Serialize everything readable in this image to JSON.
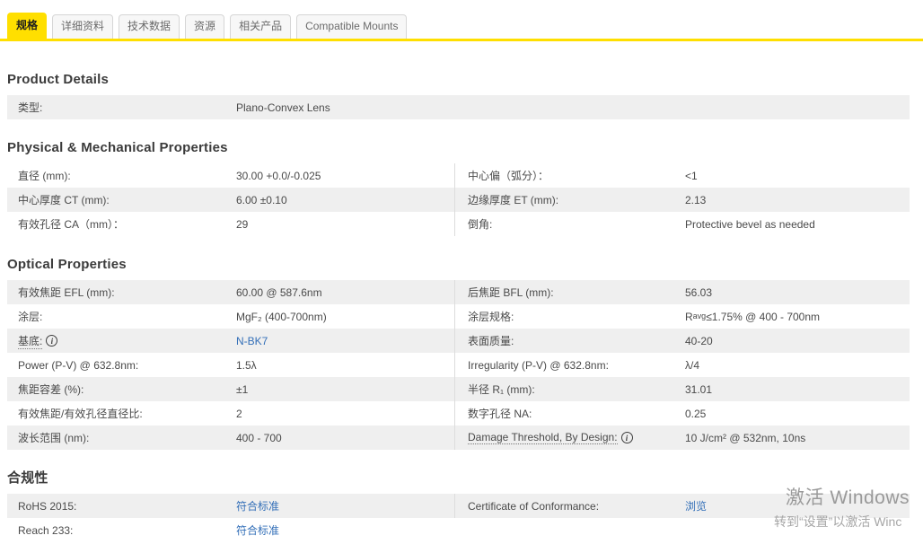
{
  "colors": {
    "accent_yellow": "#ffdf00",
    "link_blue": "#336fb8",
    "row_gray": "#efefef"
  },
  "icons": {
    "info_glyph": "i"
  },
  "tabs": [
    {
      "label": "规格",
      "active": true
    },
    {
      "label": "详细资料",
      "active": false
    },
    {
      "label": "技术数据",
      "active": false
    },
    {
      "label": "资源",
      "active": false
    },
    {
      "label": "相关产品",
      "active": false
    },
    {
      "label": "Compatible Mounts",
      "active": false
    }
  ],
  "product_details": {
    "heading": "Product Details",
    "rows": [
      {
        "l1": "类型:",
        "v1": "Plano-Convex Lens"
      }
    ]
  },
  "physical": {
    "heading": "Physical & Mechanical Properties",
    "rows": [
      {
        "l1": "直径 (mm):",
        "v1": "30.00 +0.0/-0.025",
        "l2": "中心偏（弧分）：",
        "v2": "<1"
      },
      {
        "l1": "中心厚度 CT (mm):",
        "v1": "6.00 ±0.10",
        "l2": "边缘厚度 ET (mm):",
        "v2": "2.13"
      },
      {
        "l1": "有效孔径 CA（mm）：",
        "v1": "29",
        "l2": "倒角:",
        "v2": "Protective bevel as needed"
      }
    ]
  },
  "optical": {
    "heading": "Optical Properties",
    "rows": [
      {
        "l1": "有效焦距 EFL (mm):",
        "v1": "60.00 @ 587.6nm",
        "l2": "后焦距 BFL (mm):",
        "v2": "56.03"
      },
      {
        "l1": "涂层:",
        "v1": "MgF₂ (400-700nm)",
        "l2": "涂层规格:",
        "v2_pre": "R",
        "v2_sub": "avg",
        "v2_post": " ≤1.75% @ 400 - 700nm"
      },
      {
        "l1": "基底:",
        "v1": "N-BK7",
        "l2": "表面质量:",
        "v2": "40-20"
      },
      {
        "l1": "Power (P-V) @ 632.8nm:",
        "v1": "1.5λ",
        "l2": "Irregularity (P-V) @ 632.8nm:",
        "v2": "λ/4"
      },
      {
        "l1": "焦距容差 (%):",
        "v1": "±1",
        "l2": "半径 R₁ (mm):",
        "v2": "31.01"
      },
      {
        "l1": "有效焦距/有效孔径直径比:",
        "v1": "2",
        "l2": "数字孔径 NA:",
        "v2": "0.25"
      },
      {
        "l1": "波长范围 (nm):",
        "v1": "400 - 700",
        "l2": "Damage Threshold, By Design:",
        "v2": "10 J/cm² @ 532nm, 10ns"
      }
    ]
  },
  "compliance": {
    "heading": "合规性",
    "rows": [
      {
        "l1": "RoHS 2015:",
        "v1": "符合标准",
        "l2": "Certificate of Conformance:",
        "v2": "浏览"
      },
      {
        "l1": "Reach 233:",
        "v1": "符合标准"
      }
    ]
  },
  "watermark": {
    "line1": "激活 Windows",
    "line2": "转到“设置”以激活 Winc"
  }
}
